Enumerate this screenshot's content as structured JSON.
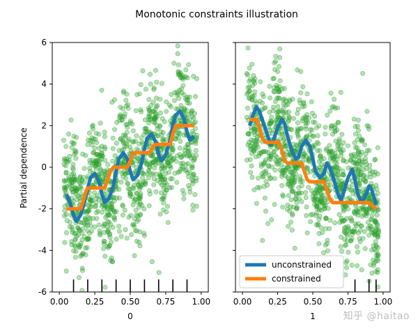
{
  "figure": {
    "title": "Monotonic constraints illustration",
    "watermark": "知乎 @haitao"
  },
  "chart_data": [
    {
      "type": "line",
      "panel": "left",
      "xlabel": "0",
      "ylabel": "Partial dependence",
      "xlim": [
        -0.05,
        1.05
      ],
      "ylim": [
        -6,
        6
      ],
      "xticks": [
        "0.00",
        "0.25",
        "0.50",
        "0.75",
        "1.00"
      ],
      "yticks": [
        "-6",
        "-4",
        "-2",
        "0",
        "2",
        "4",
        "6"
      ],
      "scatter": {
        "name": "samples",
        "color": "#2ca02c",
        "alpha": 0.35,
        "trend": "increasing"
      },
      "rug": [
        0.1,
        0.2,
        0.3,
        0.4,
        0.5,
        0.6,
        0.7,
        0.8,
        0.9
      ],
      "series": [
        {
          "color": "#1f77b4",
          "x": [
            0.05,
            0.08,
            0.1,
            0.12,
            0.15,
            0.18,
            0.2,
            0.22,
            0.25,
            0.28,
            0.3,
            0.32,
            0.35,
            0.38,
            0.4,
            0.42,
            0.45,
            0.48,
            0.5,
            0.52,
            0.55,
            0.58,
            0.6,
            0.62,
            0.65,
            0.68,
            0.7,
            0.72,
            0.75,
            0.78,
            0.8,
            0.82,
            0.85,
            0.88,
            0.9,
            0.92,
            0.95
          ],
          "values": [
            -1.3,
            -1.8,
            -2.3,
            -2.6,
            -2.3,
            -1.6,
            -1.0,
            -0.5,
            -0.3,
            -0.7,
            -1.3,
            -1.7,
            -1.5,
            -0.9,
            -0.2,
            0.4,
            0.7,
            0.4,
            -0.2,
            -0.6,
            -0.4,
            0.2,
            0.9,
            1.4,
            1.6,
            1.2,
            0.6,
            0.3,
            0.6,
            1.3,
            2.0,
            2.5,
            2.7,
            2.3,
            1.7,
            1.3,
            1.5
          ]
        },
        {
          "color": "#ff7f0e",
          "x": [
            0.05,
            0.15,
            0.17,
            0.19,
            0.2,
            0.32,
            0.34,
            0.36,
            0.38,
            0.48,
            0.5,
            0.52,
            0.54,
            0.64,
            0.66,
            0.68,
            0.7,
            0.78,
            0.8,
            0.82,
            0.84,
            0.95
          ],
          "values": [
            -2.0,
            -2.0,
            -1.6,
            -1.1,
            -1.0,
            -1.0,
            -0.6,
            -0.2,
            0.0,
            0.0,
            0.3,
            0.7,
            0.7,
            0.7,
            1.0,
            1.1,
            1.1,
            1.1,
            1.6,
            2.0,
            2.0,
            2.0
          ]
        }
      ]
    },
    {
      "type": "line",
      "panel": "right",
      "xlabel": "1",
      "xlim": [
        -0.05,
        1.05
      ],
      "ylim": [
        -6,
        6
      ],
      "xticks": [
        "0.00",
        "0.25",
        "0.50",
        "0.75",
        "1.00"
      ],
      "scatter": {
        "name": "samples",
        "color": "#2ca02c",
        "alpha": 0.35,
        "trend": "decreasing"
      },
      "rug": [
        0.8,
        0.9,
        0.95
      ],
      "legend": {
        "placement": "lower-left"
      },
      "series": [
        {
          "name": "unconstrained",
          "color": "#1f77b4",
          "x": [
            0.05,
            0.08,
            0.1,
            0.12,
            0.15,
            0.18,
            0.2,
            0.22,
            0.25,
            0.28,
            0.3,
            0.32,
            0.35,
            0.38,
            0.4,
            0.42,
            0.45,
            0.48,
            0.5,
            0.52,
            0.55,
            0.58,
            0.6,
            0.62,
            0.65,
            0.68,
            0.7,
            0.72,
            0.75,
            0.78,
            0.8,
            0.82,
            0.85,
            0.88,
            0.9,
            0.92,
            0.95
          ],
          "values": [
            2.0,
            2.6,
            2.9,
            2.7,
            2.1,
            1.5,
            1.1,
            1.3,
            1.9,
            2.3,
            2.1,
            1.5,
            0.8,
            0.4,
            0.5,
            1.0,
            1.3,
            1.0,
            0.4,
            -0.2,
            -0.5,
            -0.3,
            0.2,
            0.0,
            -0.6,
            -1.3,
            -1.6,
            -1.2,
            -0.5,
            -0.1,
            -0.6,
            -1.3,
            -1.7,
            -1.3,
            -0.9,
            -1.1,
            -1.8
          ]
        },
        {
          "name": "constrained",
          "color": "#ff7f0e",
          "x": [
            0.05,
            0.1,
            0.12,
            0.14,
            0.16,
            0.26,
            0.28,
            0.3,
            0.32,
            0.42,
            0.44,
            0.46,
            0.48,
            0.58,
            0.6,
            0.62,
            0.64,
            0.74,
            0.76,
            0.78,
            0.8,
            0.9,
            0.93,
            0.95
          ],
          "values": [
            2.3,
            2.3,
            1.9,
            1.4,
            1.2,
            1.2,
            0.8,
            0.3,
            0.2,
            0.2,
            -0.2,
            -0.6,
            -0.7,
            -0.7,
            -1.1,
            -1.5,
            -1.7,
            -1.7,
            -1.7,
            -1.7,
            -1.7,
            -1.7,
            -1.9,
            -2.0
          ]
        }
      ]
    }
  ]
}
